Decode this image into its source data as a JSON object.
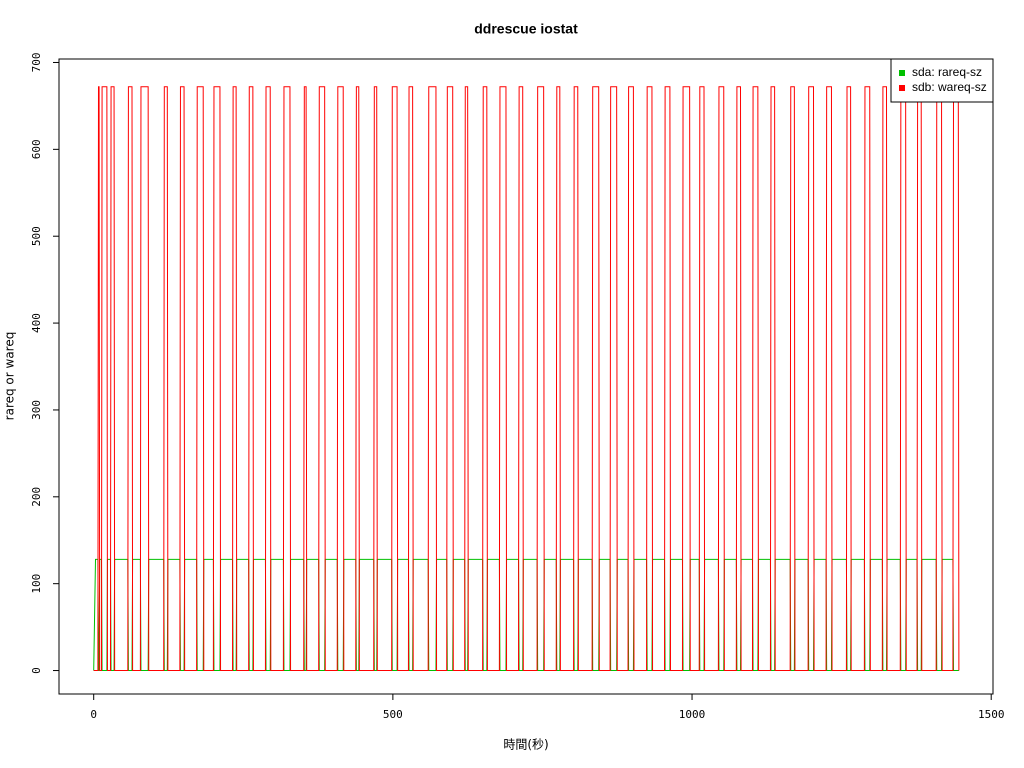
{
  "chart_data": {
    "type": "line",
    "title": "ddrescue iostat",
    "x_label": "時間(秒)",
    "y_label": "rareq or wareq",
    "xlim": [
      -58,
      1503
    ],
    "ylim": [
      -27,
      704
    ],
    "xticks": [
      0,
      500,
      1000,
      1500
    ],
    "yticks": [
      0,
      100,
      200,
      300,
      400,
      500,
      600,
      700
    ],
    "legend_position": "topright",
    "x": [
      0,
      3,
      7,
      8,
      9,
      10,
      13,
      14,
      22,
      23,
      28,
      29,
      34,
      35,
      57,
      58,
      64,
      65,
      78,
      79,
      91,
      92,
      117,
      118,
      123,
      124,
      144,
      145,
      151,
      152,
      172,
      173,
      183,
      184,
      200,
      201,
      211,
      212,
      232,
      233,
      238,
      239,
      259,
      260,
      266,
      267,
      287,
      288,
      295,
      296,
      317,
      318,
      328,
      329,
      351,
      352,
      355,
      356,
      376,
      377,
      386,
      387,
      407,
      408,
      417,
      418,
      438,
      439,
      443,
      444,
      468,
      469,
      473,
      474,
      498,
      499,
      507,
      508,
      526,
      527,
      533,
      534,
      559,
      560,
      572,
      573,
      590,
      591,
      600,
      601,
      620,
      621,
      625,
      626,
      650,
      651,
      657,
      658,
      678,
      679,
      689,
      690,
      710,
      711,
      717,
      718,
      741,
      742,
      752,
      753,
      773,
      774,
      779,
      780,
      802,
      803,
      809,
      810,
      833,
      834,
      844,
      845,
      863,
      864,
      874,
      875,
      893,
      894,
      902,
      903,
      924,
      925,
      933,
      934,
      954,
      955,
      963,
      964,
      984,
      985,
      996,
      997,
      1012,
      1013,
      1020,
      1021,
      1044,
      1045,
      1053,
      1054,
      1074,
      1075,
      1081,
      1082,
      1101,
      1102,
      1110,
      1111,
      1131,
      1132,
      1138,
      1139,
      1164,
      1165,
      1171,
      1172,
      1194,
      1195,
      1203,
      1204,
      1224,
      1225,
      1233,
      1234,
      1258,
      1259,
      1265,
      1266,
      1288,
      1289,
      1297,
      1298,
      1318,
      1319,
      1325,
      1326,
      1348,
      1349,
      1357,
      1358,
      1376,
      1377,
      1383,
      1384,
      1408,
      1409,
      1417,
      1418,
      1436,
      1437,
      1445,
      1446
    ],
    "series": [
      {
        "name": "sda: rareq-sz",
        "color": "#00c000",
        "values": [
          0,
          128,
          128,
          0,
          0,
          128,
          128,
          0,
          0,
          128,
          128,
          0,
          0,
          128,
          128,
          0,
          0,
          128,
          128,
          0,
          0,
          128,
          128,
          0,
          0,
          128,
          128,
          0,
          0,
          128,
          128,
          0,
          0,
          128,
          128,
          0,
          0,
          128,
          128,
          0,
          0,
          128,
          128,
          0,
          0,
          128,
          128,
          0,
          0,
          128,
          128,
          0,
          0,
          128,
          128,
          0,
          0,
          128,
          128,
          0,
          0,
          128,
          128,
          0,
          0,
          128,
          128,
          0,
          0,
          128,
          128,
          0,
          0,
          128,
          128,
          0,
          0,
          128,
          128,
          0,
          0,
          128,
          128,
          0,
          0,
          128,
          128,
          0,
          0,
          128,
          128,
          0,
          0,
          128,
          128,
          0,
          0,
          128,
          128,
          0,
          0,
          128,
          128,
          0,
          0,
          128,
          128,
          0,
          0,
          128,
          128,
          0,
          0,
          128,
          128,
          0,
          0,
          128,
          128,
          0,
          0,
          128,
          128,
          0,
          0,
          128,
          128,
          0,
          0,
          128,
          128,
          0,
          0,
          128,
          128,
          0,
          0,
          128,
          128,
          0,
          0,
          128,
          128,
          0,
          0,
          128,
          128,
          0,
          0,
          128,
          128,
          0,
          0,
          128,
          128,
          0,
          0,
          128,
          128,
          0,
          0,
          128,
          128,
          0,
          0,
          128,
          128,
          0,
          0,
          128,
          128,
          0,
          0,
          128,
          128,
          0,
          0,
          128,
          128,
          0,
          0,
          128,
          128,
          0,
          0,
          128,
          128,
          0,
          0,
          128,
          128,
          0,
          0,
          128,
          128,
          0,
          0,
          128,
          128,
          0,
          0,
          0
        ]
      },
      {
        "name": "sdb: wareq-sz",
        "color": "#ff0000",
        "values": [
          0,
          0,
          0,
          672,
          672,
          0,
          0,
          672,
          672,
          0,
          0,
          672,
          672,
          0,
          0,
          672,
          672,
          0,
          0,
          672,
          672,
          0,
          0,
          672,
          672,
          0,
          0,
          672,
          672,
          0,
          0,
          672,
          672,
          0,
          0,
          672,
          672,
          0,
          0,
          672,
          672,
          0,
          0,
          672,
          672,
          0,
          0,
          672,
          672,
          0,
          0,
          672,
          672,
          0,
          0,
          672,
          672,
          0,
          0,
          672,
          672,
          0,
          0,
          672,
          672,
          0,
          0,
          672,
          672,
          0,
          0,
          672,
          672,
          0,
          0,
          672,
          672,
          0,
          0,
          672,
          672,
          0,
          0,
          672,
          672,
          0,
          0,
          672,
          672,
          0,
          0,
          672,
          672,
          0,
          0,
          672,
          672,
          0,
          0,
          672,
          672,
          0,
          0,
          672,
          672,
          0,
          0,
          672,
          672,
          0,
          0,
          672,
          672,
          0,
          0,
          672,
          672,
          0,
          0,
          672,
          672,
          0,
          0,
          672,
          672,
          0,
          0,
          672,
          672,
          0,
          0,
          672,
          672,
          0,
          0,
          672,
          672,
          0,
          0,
          672,
          672,
          0,
          0,
          672,
          672,
          0,
          0,
          672,
          672,
          0,
          0,
          672,
          672,
          0,
          0,
          672,
          672,
          0,
          0,
          672,
          672,
          0,
          0,
          672,
          672,
          0,
          0,
          672,
          672,
          0,
          0,
          672,
          672,
          0,
          0,
          672,
          672,
          0,
          0,
          672,
          672,
          0,
          0,
          672,
          672,
          0,
          0,
          672,
          672,
          0,
          0,
          672,
          672,
          0,
          0,
          672,
          672,
          0,
          0,
          672,
          672,
          0
        ]
      }
    ]
  }
}
